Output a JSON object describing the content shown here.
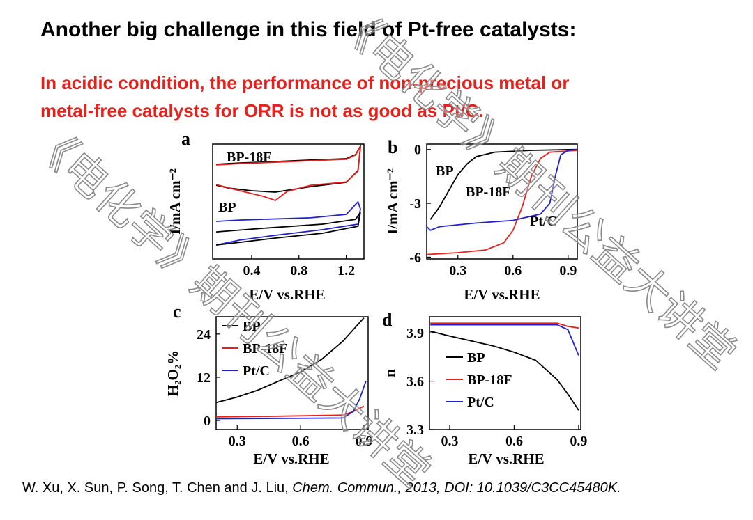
{
  "title": "Another big challenge in this field of Pt-free catalysts:",
  "subtitle": [
    "In acidic condition, the performance of  non-precious metal or",
    "metal-free catalysts for ORR is not as good as Pt/C."
  ],
  "citation": {
    "authors": "W. Xu, X. Sun, P. Song, T. Chen and J. Liu, ",
    "source": "Chem. Commun., 2013, DOI: 10.1039/C3CC45480K."
  },
  "watermark": "《电化学》期刊公益大讲堂",
  "chart_data": [
    {
      "type": "line",
      "label": "a",
      "xlabel": "E/V vs.RHE",
      "ylabel": "I/mA cm⁻²",
      "xlim": [
        0.07,
        1.35
      ],
      "xticks": [
        0.4,
        0.8,
        1.2
      ],
      "ylim": [
        0,
        10
      ],
      "yticks": [],
      "annotations": [
        "BP-18F",
        "BP"
      ],
      "series": [
        {
          "color": "#000000",
          "x": [
            0.1,
            0.3,
            0.6,
            0.9,
            1.2,
            1.28,
            1.32,
            1.32,
            1.3,
            1.2,
            0.9,
            0.6,
            0.4,
            0.2,
            0.1
          ],
          "values": [
            8.24,
            8.36,
            8.48,
            8.61,
            8.73,
            9.09,
            9.82,
            9.7,
            7.7,
            6.67,
            6.3,
            5.82,
            5.94,
            6.18,
            6.42
          ]
        },
        {
          "color": "#e8201c",
          "x": [
            0.1,
            0.3,
            0.6,
            0.9,
            1.2,
            1.28,
            1.32,
            1.32,
            1.3,
            1.2,
            0.9,
            0.7,
            0.6,
            0.5,
            0.3,
            0.1
          ],
          "values": [
            8.18,
            8.3,
            8.42,
            8.55,
            8.68,
            9.05,
            9.8,
            9.68,
            7.65,
            6.7,
            6.42,
            5.88,
            5.09,
            5.45,
            5.94,
            6.48
          ]
        },
        {
          "color": "#2020d0",
          "x": [
            0.1,
            0.3,
            0.9,
            1.2,
            1.3,
            1.32,
            1.3,
            1.0,
            0.6,
            0.3,
            0.1
          ],
          "values": [
            3.27,
            3.39,
            3.58,
            3.88,
            4.97,
            4.36,
            3.03,
            2.55,
            2.06,
            1.64,
            1.21
          ]
        },
        {
          "color": "#000000",
          "x": [
            0.1,
            0.5,
            1.0,
            1.28,
            1.32,
            1.3,
            1.0,
            0.6,
            0.3,
            0.1
          ],
          "values": [
            2.36,
            2.67,
            3.03,
            3.45,
            4.06,
            2.85,
            2.24,
            1.82,
            1.45,
            1.21
          ]
        }
      ]
    },
    {
      "type": "line",
      "label": "b",
      "xlabel": "E/V vs.RHE",
      "ylabel": "I/mA cm⁻²",
      "xlim": [
        0.13,
        0.95
      ],
      "xticks": [
        0.3,
        0.6,
        0.9
      ],
      "ylim": [
        -6.1,
        0.3
      ],
      "yticks": [
        0,
        -3,
        -6
      ],
      "annotations": [
        "BP",
        "BP-18F",
        "Pt/C"
      ],
      "series": [
        {
          "color": "#000000",
          "x": [
            0.15,
            0.2,
            0.25,
            0.3,
            0.35,
            0.4,
            0.5,
            0.7,
            0.95
          ],
          "values": [
            -3.9,
            -3.2,
            -2.3,
            -1.4,
            -0.8,
            -0.4,
            -0.15,
            -0.05,
            0
          ]
        },
        {
          "color": "#e8201c",
          "x": [
            0.13,
            0.3,
            0.45,
            0.55,
            0.6,
            0.65,
            0.7,
            0.75,
            0.8,
            0.95
          ],
          "values": [
            -5.85,
            -5.75,
            -5.6,
            -5.2,
            -4.5,
            -3.2,
            -1.5,
            -0.5,
            -0.15,
            -0.05
          ]
        },
        {
          "color": "#2020d0",
          "x": [
            0.13,
            0.15,
            0.2,
            0.4,
            0.6,
            0.75,
            0.8,
            0.83,
            0.86,
            0.9,
            0.95
          ],
          "values": [
            -4.3,
            -4.5,
            -4.3,
            -4.1,
            -3.95,
            -3.6,
            -3.0,
            -1.5,
            -0.3,
            -0.05,
            0
          ]
        }
      ]
    },
    {
      "type": "line",
      "label": "c",
      "xlabel": "E/V vs.RHE",
      "ylabel": "H₂O₂%",
      "xlim": [
        0.2,
        0.92
      ],
      "xticks": [
        0.3,
        0.6,
        0.9
      ],
      "ylim": [
        -2.5,
        28.8
      ],
      "yticks": [
        0,
        12,
        24
      ],
      "legend": "upper left",
      "series": [
        {
          "name": "BP",
          "color": "#000000",
          "x": [
            0.2,
            0.3,
            0.4,
            0.5,
            0.6,
            0.7,
            0.8,
            0.9
          ],
          "values": [
            5,
            6.5,
            8.5,
            11,
            13.5,
            17,
            22,
            28.5
          ]
        },
        {
          "name": "BP-18F",
          "color": "#e8201c",
          "x": [
            0.2,
            0.5,
            0.8,
            0.85,
            0.9
          ],
          "values": [
            1.0,
            1.2,
            1.5,
            2.5,
            4
          ]
        },
        {
          "name": "Pt/C",
          "color": "#2020d0",
          "x": [
            0.2,
            0.5,
            0.8,
            0.85,
            0.88,
            0.91
          ],
          "values": [
            0.5,
            0.6,
            0.7,
            2.5,
            6,
            11
          ]
        }
      ]
    },
    {
      "type": "line",
      "label": "d",
      "xlabel": "E/V vs.RHE",
      "ylabel": "n",
      "xlim": [
        0.206,
        0.91
      ],
      "xticks": [
        0.3,
        0.6,
        0.9
      ],
      "ylim": [
        3.3,
        4.0
      ],
      "yticks": [
        3.3,
        3.6,
        3.9
      ],
      "legend": "center left",
      "series": [
        {
          "name": "BP",
          "color": "#000000",
          "x": [
            0.21,
            0.3,
            0.4,
            0.5,
            0.6,
            0.7,
            0.8,
            0.85,
            0.9
          ],
          "values": [
            3.91,
            3.88,
            3.85,
            3.82,
            3.78,
            3.73,
            3.61,
            3.52,
            3.42
          ]
        },
        {
          "name": "BP-18F",
          "color": "#e8201c",
          "x": [
            0.21,
            0.8,
            0.85,
            0.9
          ],
          "values": [
            3.96,
            3.96,
            3.94,
            3.93
          ]
        },
        {
          "name": "Pt/C",
          "color": "#2020d0",
          "x": [
            0.21,
            0.8,
            0.85,
            0.9
          ],
          "values": [
            3.95,
            3.95,
            3.92,
            3.76
          ]
        }
      ]
    }
  ]
}
